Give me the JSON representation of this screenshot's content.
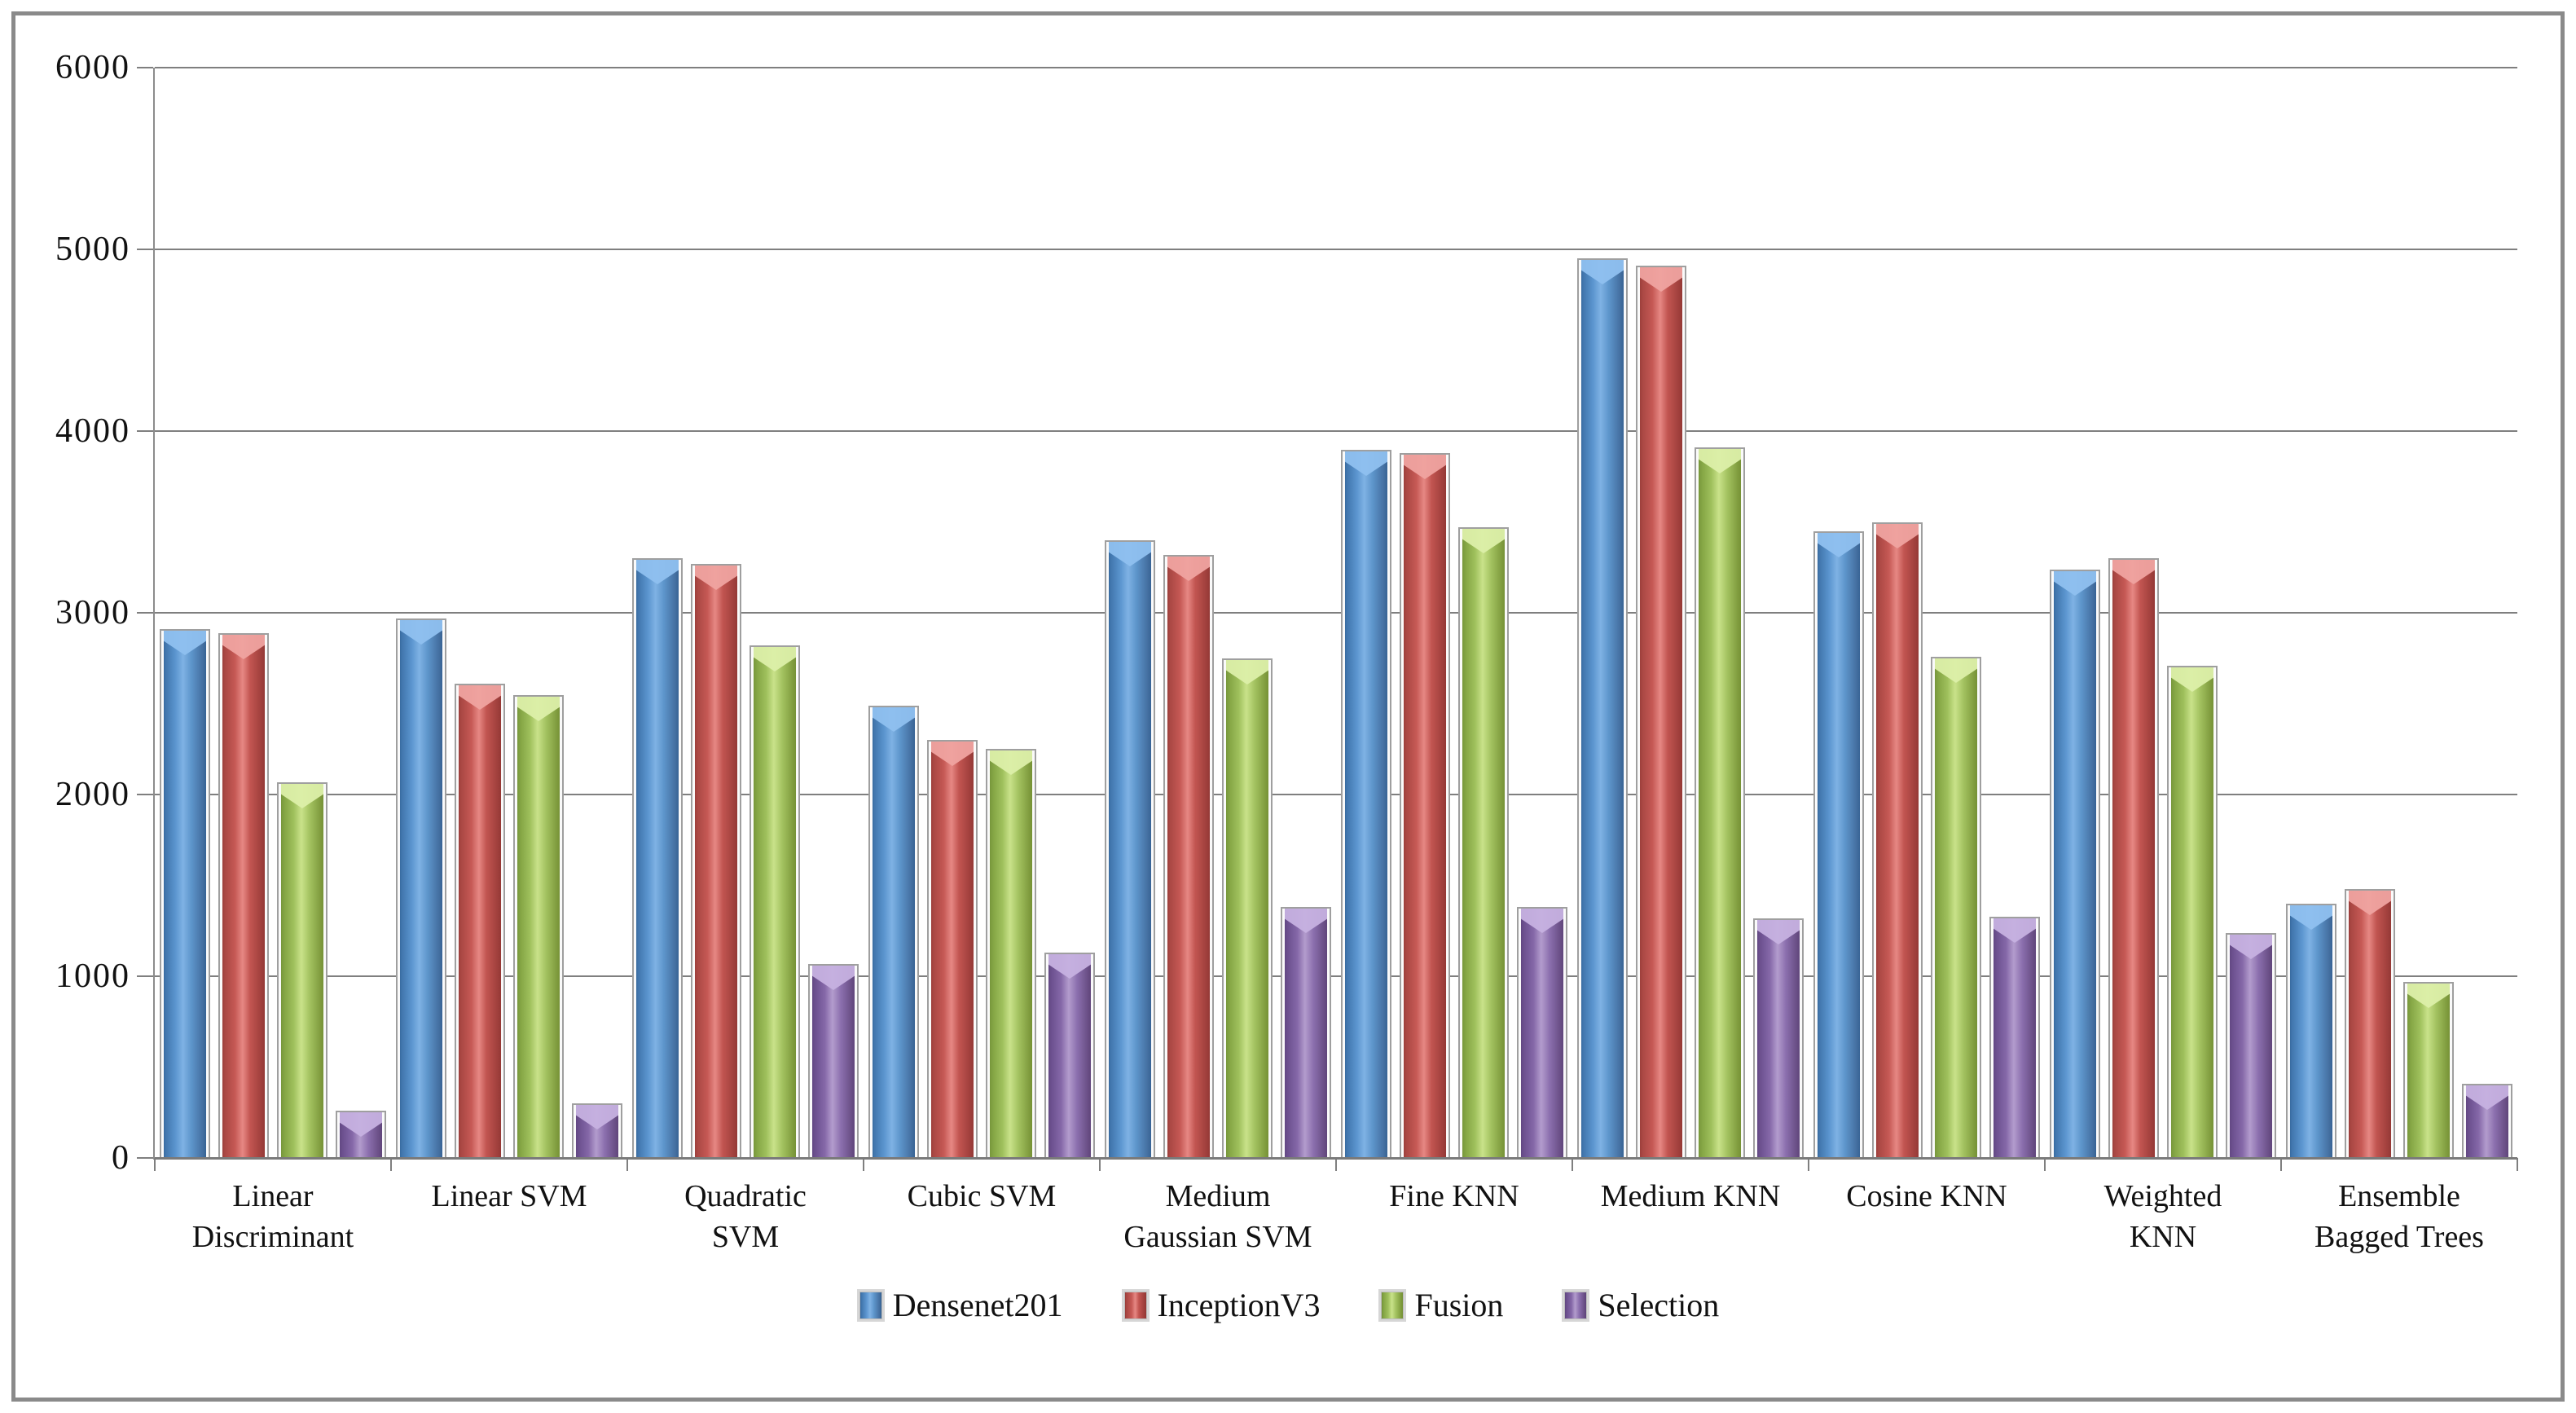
{
  "chart_data": {
    "type": "bar",
    "title": "",
    "xlabel": "",
    "ylabel": "",
    "ylim": [
      0,
      6000
    ],
    "ytick_step": 1000,
    "yticks": [
      "0",
      "1000",
      "2000",
      "3000",
      "4000",
      "5000",
      "6000"
    ],
    "grid": true,
    "legend_position": "bottom",
    "categories": [
      "Linear Discriminant",
      "Linear SVM",
      "Quadratic SVM",
      "Cubic SVM",
      "Medium Gaussian SVM",
      "Fine KNN",
      "Medium KNN",
      "Cosine KNN",
      "Weighted KNN",
      "Ensemble Bagged Trees"
    ],
    "category_display_lines": [
      [
        "Linear",
        "Discriminant"
      ],
      [
        "Linear SVM"
      ],
      [
        "Quadratic",
        "SVM"
      ],
      [
        "Cubic SVM"
      ],
      [
        "Medium",
        "Gaussian SVM"
      ],
      [
        "Fine KNN"
      ],
      [
        "Medium KNN"
      ],
      [
        "Cosine KNN"
      ],
      [
        "Weighted",
        "KNN"
      ],
      [
        "Ensemble",
        "Bagged Trees"
      ]
    ],
    "series": [
      {
        "name": "Densenet201",
        "color": "#4f81bd",
        "values": [
          2900,
          2960,
          3290,
          2480,
          3390,
          3890,
          4940,
          3440,
          3230,
          1390
        ]
      },
      {
        "name": "InceptionV3",
        "color": "#c0504d",
        "values": [
          2880,
          2600,
          3260,
          2290,
          3310,
          3870,
          4900,
          3490,
          3290,
          1470
        ]
      },
      {
        "name": "Fusion",
        "color": "#9bbb59",
        "values": [
          2060,
          2540,
          2810,
          2240,
          2740,
          3460,
          3900,
          2750,
          2700,
          960
        ]
      },
      {
        "name": "Selection",
        "color": "#8064a2",
        "values": [
          250,
          290,
          1060,
          1120,
          1370,
          1370,
          1310,
          1320,
          1230,
          400
        ]
      }
    ],
    "colors": {
      "gridline": "#7f7f7f",
      "frame_border": "#8a8a8a",
      "bar_outline": "#9f9f9f",
      "text": "#111111"
    }
  }
}
